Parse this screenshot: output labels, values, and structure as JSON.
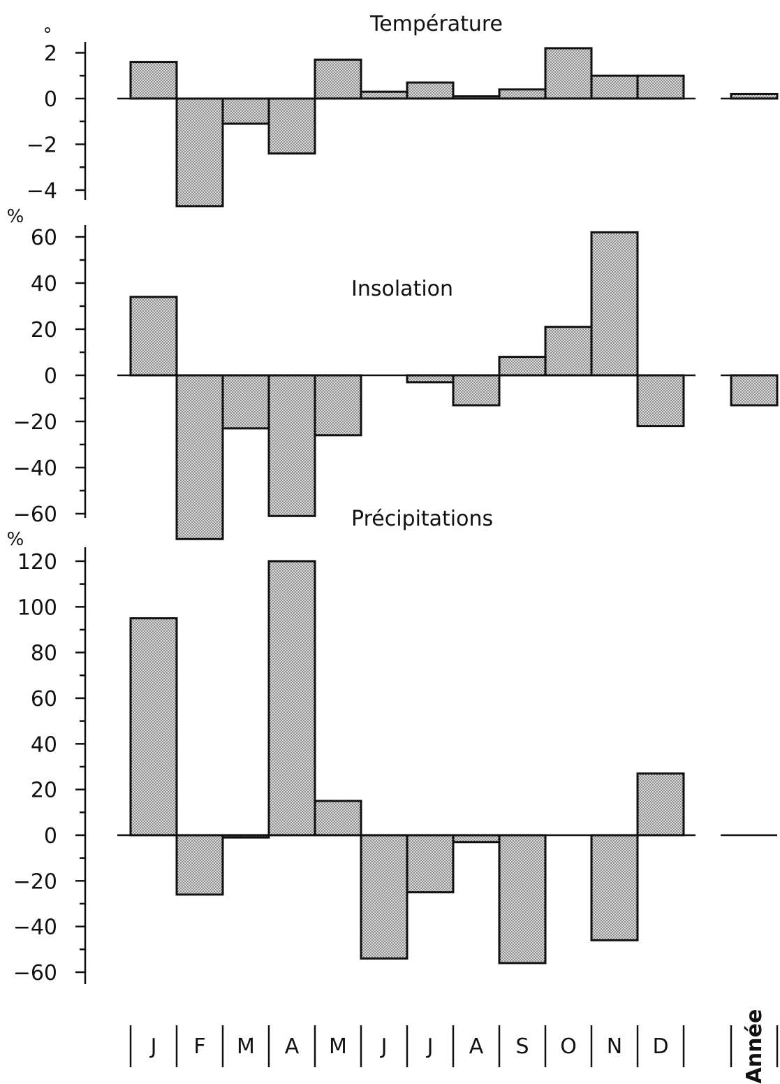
{
  "chart_data": [
    {
      "type": "bar",
      "title": "Température",
      "unit": "°",
      "categories": [
        "J",
        "F",
        "M",
        "A",
        "M",
        "J",
        "J",
        "A",
        "S",
        "O",
        "N",
        "D",
        "Année"
      ],
      "values": [
        1.6,
        -4.7,
        -1.1,
        -2.4,
        1.7,
        0.3,
        0.7,
        0.1,
        0.4,
        2.2,
        1.0,
        1.0,
        0.2
      ],
      "ylim": [
        -5,
        3
      ],
      "yticks": [
        {
          "value": -4,
          "label": "−4"
        },
        {
          "value": -2,
          "label": "−2"
        },
        {
          "value": 0,
          "label": "0"
        },
        {
          "value": 2,
          "label": "2"
        }
      ],
      "minor_step": 1
    },
    {
      "type": "bar",
      "title": "Insolation",
      "unit": "%",
      "categories": [
        "J",
        "F",
        "M",
        "A",
        "M",
        "J",
        "J",
        "A",
        "S",
        "O",
        "N",
        "D",
        "Année"
      ],
      "values": [
        34,
        -71,
        -23,
        -61,
        -26,
        0,
        -3,
        -13,
        8,
        21,
        62,
        -22,
        -13
      ],
      "ylim": [
        -75,
        65
      ],
      "yticks": [
        {
          "value": -60,
          "label": "−60"
        },
        {
          "value": -40,
          "label": "−40"
        },
        {
          "value": -20,
          "label": "−20"
        },
        {
          "value": 0,
          "label": "0"
        },
        {
          "value": 20,
          "label": "20"
        },
        {
          "value": 40,
          "label": "40"
        },
        {
          "value": 60,
          "label": "60"
        }
      ],
      "minor_step": 10
    },
    {
      "type": "bar",
      "title": "Précipitations",
      "unit": "%",
      "categories": [
        "J",
        "F",
        "M",
        "A",
        "M",
        "J",
        "J",
        "A",
        "S",
        "O",
        "N",
        "D",
        "Année"
      ],
      "values": [
        95,
        -26,
        -1,
        120,
        15,
        -54,
        -25,
        -3,
        -56,
        0,
        -46,
        27,
        0
      ],
      "ylim": [
        -65,
        125
      ],
      "yticks": [
        {
          "value": -60,
          "label": "−60"
        },
        {
          "value": -40,
          "label": "−40"
        },
        {
          "value": -20,
          "label": "−20"
        },
        {
          "value": 0,
          "label": "0"
        },
        {
          "value": 20,
          "label": "20"
        },
        {
          "value": 40,
          "label": "40"
        },
        {
          "value": 60,
          "label": "60"
        },
        {
          "value": 80,
          "label": "80"
        },
        {
          "value": 100,
          "label": "100"
        },
        {
          "value": 120,
          "label": "120"
        }
      ],
      "minor_step": 10
    }
  ],
  "months": [
    "J",
    "F",
    "M",
    "A",
    "M",
    "J",
    "J",
    "A",
    "S",
    "O",
    "N",
    "D"
  ],
  "year_label": "Année",
  "colors": {
    "bar_fill": "#cfcfcf",
    "ink": "#111111",
    "background": "#ffffff"
  }
}
